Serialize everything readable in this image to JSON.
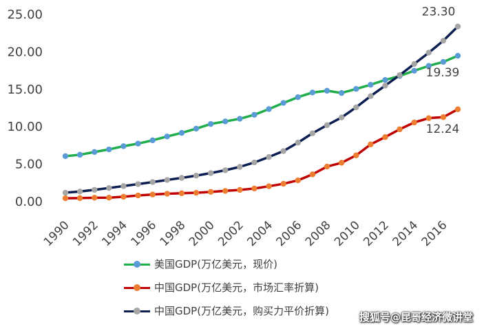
{
  "chart_data": {
    "type": "line",
    "title": "",
    "xlabel": "",
    "ylabel": "",
    "ylim": [
      0,
      25
    ],
    "yticks": [
      "0.00",
      "5.00",
      "10.00",
      "15.00",
      "20.00",
      "25.00"
    ],
    "xticks": [
      "1990",
      "1992",
      "1994",
      "1996",
      "1998",
      "2000",
      "2002",
      "2004",
      "2006",
      "2008",
      "2010",
      "2012",
      "2014",
      "2016"
    ],
    "x": [
      1990,
      1991,
      1992,
      1993,
      1994,
      1995,
      1996,
      1997,
      1998,
      1999,
      2000,
      2001,
      2002,
      2003,
      2004,
      2005,
      2006,
      2007,
      2008,
      2009,
      2010,
      2011,
      2012,
      2013,
      2014,
      2015,
      2016,
      2017
    ],
    "grid": false,
    "legend_position": "bottom",
    "series": [
      {
        "name": "美国GDP(万亿美元，现价)",
        "line_color": "#1fae4b",
        "marker_color": "#5b9bd5",
        "values": [
          5.98,
          6.17,
          6.54,
          6.88,
          7.31,
          7.66,
          8.1,
          8.61,
          9.09,
          9.66,
          10.28,
          10.62,
          10.98,
          11.51,
          12.27,
          13.09,
          13.86,
          14.48,
          14.72,
          14.42,
          14.96,
          15.52,
          16.16,
          16.69,
          17.39,
          18.04,
          18.57,
          19.39
        ],
        "end_label": "19.39"
      },
      {
        "name": "中国GDP(万亿美元，市场汇率折算)",
        "line_color": "#c00000",
        "marker_color": "#ed7d31",
        "values": [
          0.36,
          0.38,
          0.43,
          0.44,
          0.56,
          0.73,
          0.86,
          0.96,
          1.03,
          1.09,
          1.21,
          1.34,
          1.47,
          1.66,
          1.96,
          2.29,
          2.75,
          3.55,
          4.59,
          5.1,
          6.09,
          7.55,
          8.53,
          9.57,
          10.48,
          11.06,
          11.19,
          12.24
        ],
        "end_label": "12.24"
      },
      {
        "name": "中国GDP(万亿美元，购买力平价折算)",
        "line_color": "#0d1f52",
        "marker_color": "#a5a5a5",
        "values": [
          1.1,
          1.26,
          1.48,
          1.73,
          1.99,
          2.25,
          2.52,
          2.8,
          3.08,
          3.38,
          3.72,
          4.1,
          4.55,
          5.14,
          5.87,
          6.66,
          7.79,
          9.04,
          10.12,
          11.15,
          12.5,
          14.0,
          15.4,
          16.8,
          18.3,
          19.8,
          21.4,
          23.3
        ],
        "end_label": "23.30"
      }
    ]
  },
  "watermark": "搜狐号@昆哥经济微讲堂"
}
